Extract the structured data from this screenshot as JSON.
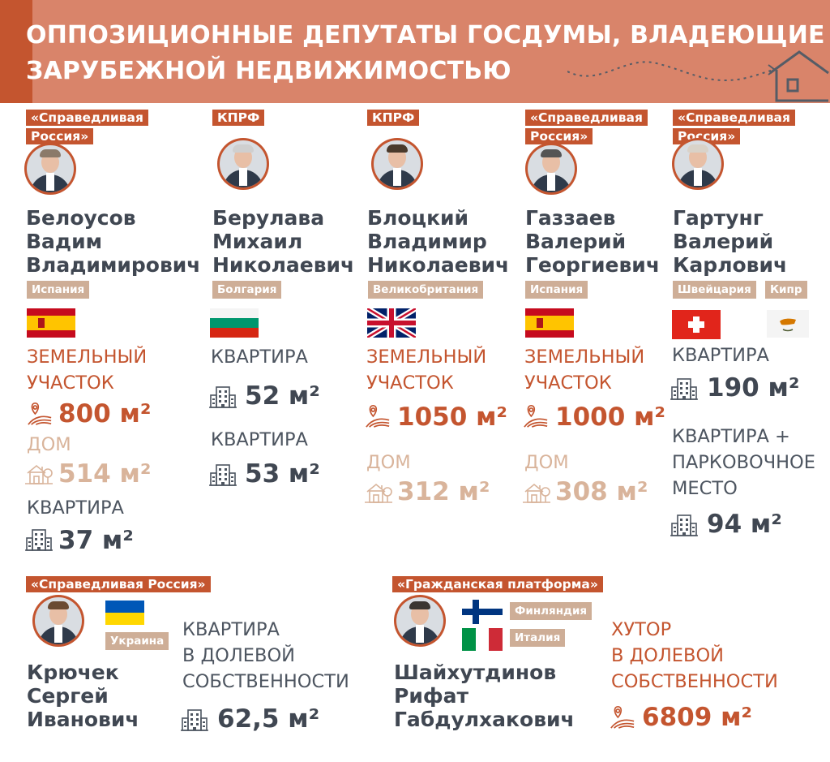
{
  "header": {
    "title_line1": "ОППОЗИЦИОННЫЕ ДЕПУТАТЫ ГОСДУМЫ, ВЛАДЕЮЩИЕ",
    "title_line2": "ЗАРУБЕЖНОЙ НЕДВИЖИМОСТЬЮ",
    "accent_color": "#d9846a"
  },
  "deputies": [
    {
      "party_line1": "«Справедливая",
      "party_line2": "Россия»",
      "name": [
        "Белоусов",
        "Вадим",
        "Владимирович"
      ],
      "countries": [
        "Испания"
      ],
      "properties": [
        {
          "type_line1": "ЗЕМЕЛЬНЫЙ",
          "type_line2": "УЧАСТОК",
          "area": "800 м²",
          "icon": "land-plot-icon"
        },
        {
          "type_line1": "ДОМ",
          "area": "514 м²",
          "icon": "house-icon"
        },
        {
          "type_line1": "КВАРТИРА",
          "area": "37 м²",
          "icon": "apartment-building-icon"
        }
      ]
    },
    {
      "party_line1": "КПРФ",
      "name": [
        "Берулава",
        "Михаил",
        "Николаевич"
      ],
      "countries": [
        "Болгария"
      ],
      "properties": [
        {
          "type_line1": "КВАРТИРА",
          "area": "52 м²",
          "icon": "apartment-building-icon"
        },
        {
          "type_line1": "КВАРТИРА",
          "area": "53 м²",
          "icon": "apartment-building-icon"
        }
      ]
    },
    {
      "party_line1": "КПРФ",
      "name": [
        "Блоцкий",
        "Владимир",
        "Николаевич"
      ],
      "countries": [
        "Великобритания"
      ],
      "properties": [
        {
          "type_line1": "ЗЕМЕЛЬНЫЙ",
          "type_line2": "УЧАСТОК",
          "area": "1050 м²",
          "icon": "land-plot-icon"
        },
        {
          "type_line1": "ДОМ",
          "area": "312 м²",
          "icon": "house-icon"
        }
      ]
    },
    {
      "party_line1": "«Справедливая",
      "party_line2": "Россия»",
      "name": [
        "Газзаев",
        "Валерий",
        "Георгиевич"
      ],
      "countries": [
        "Испания"
      ],
      "properties": [
        {
          "type_line1": "ЗЕМЕЛЬНЫЙ",
          "type_line2": "УЧАСТОК",
          "area": "1000 м²",
          "icon": "land-plot-icon"
        },
        {
          "type_line1": "ДОМ",
          "area": "308 м²",
          "icon": "house-icon"
        }
      ]
    },
    {
      "party_line1": "«Справедливая",
      "party_line2": "Россия»",
      "name": [
        "Гартунг",
        "Валерий",
        "Карлович"
      ],
      "countries": [
        "Швейцария",
        "Кипр"
      ],
      "properties": [
        {
          "type_line1": "КВАРТИРА",
          "area": "190 м²",
          "icon": "apartment-building-icon"
        },
        {
          "type_line1": "КВАРТИРА +",
          "type_line2": "ПАРКОВОЧНОЕ",
          "type_line3": "МЕСТО",
          "area": "94 м²",
          "icon": "apartment-building-icon"
        }
      ]
    },
    {
      "party_line1": "«Справедливая Россия»",
      "name": [
        "Крючек",
        "Сергей",
        "Иванович"
      ],
      "countries": [
        "Украина"
      ],
      "properties": [
        {
          "type_line1": "КВАРТИРА",
          "type_line2": "В ДОЛЕВОЙ",
          "type_line3": "СОБСТВЕННОСТИ",
          "area": "62,5 м²",
          "icon": "apartment-building-icon"
        }
      ]
    },
    {
      "party_line1": "«Гражданская платформа»",
      "name": [
        "Шайхутдинов",
        "Рифат",
        "Габдулхакович"
      ],
      "countries": [
        "Финляндия",
        "Италия"
      ],
      "properties": [
        {
          "type_line1": "ХУТОР",
          "type_line2": "В ДОЛЕВОЙ",
          "type_line3": "СОБСТВЕННОСТИ",
          "area": "6809 м²",
          "icon": "land-plot-icon"
        }
      ]
    }
  ]
}
